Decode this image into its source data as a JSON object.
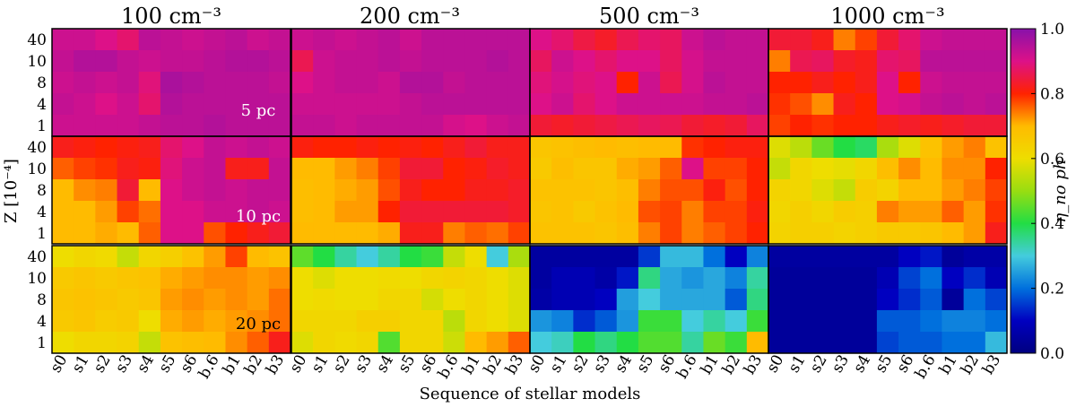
{
  "chart_data": {
    "type": "heatmap",
    "xlabel": "Sequence of stellar models",
    "ylabel": "Z [10⁻⁴]",
    "colorbar_label": "η_no ph",
    "colorbar_range": [
      0.0,
      1.0
    ],
    "colorbar_ticks": [
      "0.0",
      "0.2",
      "0.4",
      "0.6",
      "0.8",
      "1.0"
    ],
    "colormap": "nipy_spectral",
    "x_categories": [
      "s0",
      "s1",
      "s2",
      "s3",
      "s4",
      "s5",
      "s6",
      "b.6",
      "b1",
      "b2",
      "b3"
    ],
    "y_categories": [
      "40",
      "10",
      "8",
      "4",
      "1"
    ],
    "column_titles": [
      "100 cm⁻³",
      "200 cm⁻³",
      "500 cm⁻³",
      "1000 cm⁻³"
    ],
    "row_labels": [
      "5 pc",
      "10 pc",
      "20 pc"
    ],
    "panels": [
      [
        {
          "values": [
            [
              0.92,
              0.92,
              0.9,
              0.88,
              0.94,
              0.93,
              0.92,
              0.93,
              0.94,
              0.92,
              0.93
            ],
            [
              0.93,
              0.95,
              0.95,
              0.93,
              0.92,
              0.93,
              0.93,
              0.94,
              0.95,
              0.95,
              0.94
            ],
            [
              0.92,
              0.93,
              0.92,
              0.93,
              0.89,
              0.96,
              0.95,
              0.94,
              0.94,
              0.94,
              0.93
            ],
            [
              0.93,
              0.92,
              0.9,
              0.92,
              0.88,
              0.95,
              0.94,
              0.94,
              0.94,
              0.94,
              0.94
            ],
            [
              0.92,
              0.92,
              0.92,
              0.92,
              0.93,
              0.94,
              0.94,
              0.95,
              0.94,
              0.94,
              0.94
            ]
          ]
        },
        {
          "values": [
            [
              0.92,
              0.93,
              0.92,
              0.93,
              0.94,
              0.92,
              0.94,
              0.94,
              0.94,
              0.94,
              0.94
            ],
            [
              0.86,
              0.92,
              0.93,
              0.93,
              0.94,
              0.93,
              0.94,
              0.94,
              0.94,
              0.95,
              0.94
            ],
            [
              0.9,
              0.92,
              0.93,
              0.93,
              0.92,
              0.95,
              0.95,
              0.93,
              0.94,
              0.94,
              0.94
            ],
            [
              0.92,
              0.92,
              0.92,
              0.92,
              0.92,
              0.93,
              0.94,
              0.94,
              0.94,
              0.94,
              0.94
            ],
            [
              0.93,
              0.93,
              0.92,
              0.93,
              0.93,
              0.93,
              0.93,
              0.91,
              0.9,
              0.92,
              0.93
            ]
          ]
        },
        {
          "values": [
            [
              0.9,
              0.88,
              0.85,
              0.83,
              0.86,
              0.88,
              0.87,
              0.92,
              0.94,
              0.93,
              0.93
            ],
            [
              0.87,
              0.92,
              0.9,
              0.88,
              0.9,
              0.9,
              0.87,
              0.91,
              0.93,
              0.93,
              0.93
            ],
            [
              0.89,
              0.91,
              0.89,
              0.9,
              0.8,
              0.92,
              0.86,
              0.91,
              0.94,
              0.93,
              0.93
            ],
            [
              0.9,
              0.92,
              0.88,
              0.9,
              0.92,
              0.92,
              0.92,
              0.92,
              0.93,
              0.93,
              0.94
            ],
            [
              0.84,
              0.83,
              0.84,
              0.85,
              0.86,
              0.87,
              0.86,
              0.84,
              0.83,
              0.84,
              0.87
            ]
          ]
        },
        {
          "values": [
            [
              0.84,
              0.84,
              0.82,
              0.74,
              0.78,
              0.84,
              0.88,
              0.92,
              0.93,
              0.93,
              0.93
            ],
            [
              0.74,
              0.86,
              0.87,
              0.83,
              0.82,
              0.88,
              0.87,
              0.94,
              0.94,
              0.94,
              0.94
            ],
            [
              0.8,
              0.8,
              0.82,
              0.8,
              0.82,
              0.9,
              0.8,
              0.92,
              0.93,
              0.93,
              0.93
            ],
            [
              0.79,
              0.77,
              0.73,
              0.82,
              0.8,
              0.9,
              0.91,
              0.93,
              0.94,
              0.93,
              0.94
            ],
            [
              0.78,
              0.8,
              0.79,
              0.8,
              0.8,
              0.82,
              0.83,
              0.82,
              0.83,
              0.84,
              0.84
            ]
          ]
        }
      ],
      [
        {
          "values": [
            [
              0.82,
              0.81,
              0.8,
              0.81,
              0.82,
              0.88,
              0.9,
              0.93,
              0.92,
              0.93,
              0.92
            ],
            [
              0.76,
              0.78,
              0.79,
              0.82,
              0.81,
              0.89,
              0.92,
              0.93,
              0.82,
              0.82,
              0.93
            ],
            [
              0.7,
              0.73,
              0.74,
              0.84,
              0.7,
              0.9,
              0.92,
              0.93,
              0.92,
              0.93,
              0.93
            ],
            [
              0.7,
              0.7,
              0.72,
              0.78,
              0.75,
              0.9,
              0.9,
              0.92,
              0.92,
              0.93,
              0.92
            ],
            [
              0.7,
              0.7,
              0.71,
              0.7,
              0.76,
              0.9,
              0.9,
              0.77,
              0.8,
              0.82,
              0.84
            ]
          ]
        },
        {
          "values": [
            [
              0.81,
              0.8,
              0.8,
              0.81,
              0.8,
              0.81,
              0.8,
              0.82,
              0.84,
              0.82,
              0.82
            ],
            [
              0.7,
              0.7,
              0.72,
              0.74,
              0.78,
              0.84,
              0.84,
              0.8,
              0.81,
              0.83,
              0.82
            ],
            [
              0.69,
              0.7,
              0.71,
              0.72,
              0.77,
              0.82,
              0.8,
              0.8,
              0.82,
              0.82,
              0.83
            ],
            [
              0.69,
              0.7,
              0.72,
              0.72,
              0.8,
              0.84,
              0.84,
              0.84,
              0.84,
              0.84,
              0.83
            ],
            [
              0.7,
              0.7,
              0.7,
              0.7,
              0.71,
              0.82,
              0.82,
              0.74,
              0.76,
              0.75,
              0.78
            ]
          ]
        },
        {
          "values": [
            [
              0.67,
              0.68,
              0.69,
              0.7,
              0.69,
              0.7,
              0.7,
              0.79,
              0.8,
              0.81,
              0.81
            ],
            [
              0.66,
              0.69,
              0.67,
              0.67,
              0.71,
              0.72,
              0.76,
              0.9,
              0.78,
              0.78,
              0.8
            ],
            [
              0.68,
              0.68,
              0.68,
              0.67,
              0.69,
              0.74,
              0.77,
              0.77,
              0.81,
              0.77,
              0.8
            ],
            [
              0.67,
              0.68,
              0.66,
              0.68,
              0.7,
              0.77,
              0.78,
              0.74,
              0.78,
              0.78,
              0.81
            ],
            [
              0.68,
              0.68,
              0.68,
              0.67,
              0.69,
              0.74,
              0.78,
              0.74,
              0.76,
              0.78,
              0.8
            ]
          ]
        },
        {
          "values": [
            [
              0.58,
              0.54,
              0.46,
              0.4,
              0.38,
              0.52,
              0.58,
              0.68,
              0.72,
              0.74,
              0.68
            ],
            [
              0.55,
              0.62,
              0.6,
              0.59,
              0.62,
              0.69,
              0.73,
              0.7,
              0.73,
              0.73,
              0.8
            ],
            [
              0.63,
              0.62,
              0.58,
              0.55,
              0.65,
              0.63,
              0.7,
              0.7,
              0.72,
              0.74,
              0.78
            ],
            [
              0.62,
              0.64,
              0.62,
              0.65,
              0.64,
              0.74,
              0.72,
              0.72,
              0.76,
              0.72,
              0.79
            ],
            [
              0.63,
              0.64,
              0.64,
              0.63,
              0.64,
              0.66,
              0.66,
              0.67,
              0.7,
              0.72,
              0.82
            ]
          ]
        }
      ],
      [
        {
          "values": [
            [
              0.6,
              0.62,
              0.61,
              0.55,
              0.62,
              0.64,
              0.68,
              0.72,
              0.78,
              0.7,
              0.68
            ],
            [
              0.66,
              0.67,
              0.66,
              0.67,
              0.68,
              0.71,
              0.72,
              0.73,
              0.73,
              0.72,
              0.73
            ],
            [
              0.67,
              0.68,
              0.67,
              0.66,
              0.67,
              0.72,
              0.73,
              0.72,
              0.73,
              0.72,
              0.75
            ],
            [
              0.66,
              0.67,
              0.65,
              0.66,
              0.6,
              0.71,
              0.72,
              0.71,
              0.72,
              0.73,
              0.75
            ],
            [
              0.6,
              0.62,
              0.62,
              0.63,
              0.55,
              0.68,
              0.69,
              0.7,
              0.73,
              0.76,
              0.82
            ]
          ]
        },
        {
          "values": [
            [
              0.45,
              0.4,
              0.34,
              0.3,
              0.34,
              0.4,
              0.42,
              0.55,
              0.6,
              0.3,
              0.52
            ],
            [
              0.6,
              0.58,
              0.6,
              0.6,
              0.61,
              0.6,
              0.62,
              0.63,
              0.62,
              0.6,
              0.58
            ],
            [
              0.6,
              0.61,
              0.6,
              0.6,
              0.62,
              0.62,
              0.57,
              0.6,
              0.62,
              0.6,
              0.58
            ],
            [
              0.62,
              0.62,
              0.62,
              0.64,
              0.64,
              0.62,
              0.62,
              0.54,
              0.62,
              0.6,
              0.58
            ],
            [
              0.58,
              0.62,
              0.61,
              0.62,
              0.44,
              0.62,
              0.62,
              0.56,
              0.7,
              0.72,
              0.76
            ]
          ]
        },
        {
          "values": [
            [
              0.05,
              0.05,
              0.05,
              0.05,
              0.05,
              0.15,
              0.28,
              0.28,
              0.2,
              0.1,
              0.22
            ],
            [
              0.05,
              0.08,
              0.08,
              0.06,
              0.12,
              0.36,
              0.26,
              0.24,
              0.26,
              0.22,
              0.34
            ],
            [
              0.06,
              0.08,
              0.08,
              0.1,
              0.25,
              0.3,
              0.26,
              0.26,
              0.26,
              0.18,
              0.36
            ],
            [
              0.24,
              0.22,
              0.14,
              0.18,
              0.24,
              0.42,
              0.42,
              0.3,
              0.34,
              0.3,
              0.42
            ],
            [
              0.3,
              0.32,
              0.4,
              0.36,
              0.4,
              0.44,
              0.44,
              0.34,
              0.46,
              0.42,
              0.7
            ]
          ]
        },
        {
          "values": [
            [
              0.05,
              0.05,
              0.05,
              0.05,
              0.05,
              0.05,
              0.1,
              0.12,
              0.04,
              0.06,
              0.06
            ],
            [
              0.04,
              0.04,
              0.04,
              0.04,
              0.04,
              0.08,
              0.16,
              0.2,
              0.1,
              0.14,
              0.08
            ],
            [
              0.04,
              0.04,
              0.04,
              0.04,
              0.04,
              0.1,
              0.14,
              0.18,
              0.04,
              0.2,
              0.16
            ],
            [
              0.04,
              0.04,
              0.04,
              0.04,
              0.04,
              0.18,
              0.18,
              0.2,
              0.22,
              0.22,
              0.2
            ],
            [
              0.04,
              0.04,
              0.04,
              0.04,
              0.04,
              0.16,
              0.18,
              0.18,
              0.2,
              0.2,
              0.28
            ]
          ]
        }
      ]
    ]
  }
}
